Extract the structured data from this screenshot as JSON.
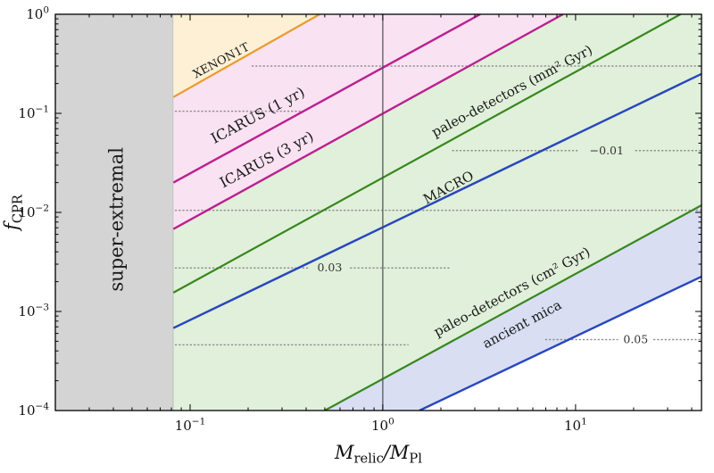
{
  "chart_data": {
    "type": "line",
    "title": "",
    "xlabel": "M_{relic}/M_{Pl}",
    "ylabel": "f_{CPR}",
    "xscale": "log",
    "yscale": "log",
    "xlim": [
      0.02,
      45
    ],
    "ylim": [
      0.0001,
      1
    ],
    "grid": false,
    "legend": "none",
    "x_ticks": [
      {
        "v": 0.1,
        "label": "10^{−1}"
      },
      {
        "v": 1,
        "label": "10^{0}"
      },
      {
        "v": 10,
        "label": "10^{1}"
      }
    ],
    "y_ticks": [
      {
        "v": 1,
        "label": "10^{0}"
      },
      {
        "v": 0.1,
        "label": "10^{−1}"
      },
      {
        "v": 0.01,
        "label": "10^{−2}"
      },
      {
        "v": 0.001,
        "label": "10^{−3}"
      },
      {
        "v": 0.0001,
        "label": "10^{−4}"
      }
    ],
    "regions": [
      {
        "name": "super-extremal",
        "fill": "#d4d4d4",
        "edge": "#a6a6a6",
        "poly": [
          [
            0.02,
            0.0001
          ],
          [
            0.082,
            0.0001
          ],
          [
            0.082,
            1
          ],
          [
            0.02,
            1
          ]
        ]
      },
      {
        "name": "paleo-detectors-green",
        "fill": "#e0f0da",
        "poly": [
          [
            0.082,
            0.0001
          ],
          [
            0.5,
            0.0001
          ],
          [
            45,
            0.0118
          ],
          [
            45,
            1
          ],
          [
            0.082,
            1
          ]
        ]
      },
      {
        "name": "ancient-mica-blue",
        "fill": "#d9def3",
        "poly": [
          [
            0.5,
            0.0001
          ],
          [
            1.55,
            0.0001
          ],
          [
            45,
            0.00225
          ],
          [
            45,
            0.0118
          ]
        ]
      },
      {
        "name": "icarus-pink",
        "fill": "#f9e2f1",
        "poly": [
          [
            0.082,
            0.0068
          ],
          [
            8.6,
            1
          ],
          [
            0.082,
            1
          ]
        ]
      },
      {
        "name": "xenon1t-orange",
        "fill": "#fdf0d4",
        "poly": [
          [
            0.082,
            0.146
          ],
          [
            0.47,
            1
          ],
          [
            0.082,
            1
          ]
        ]
      }
    ],
    "series": [
      {
        "name": "XENON1T",
        "color": "#e89b2e",
        "width": 2.2,
        "points": [
          [
            0.082,
            0.146
          ],
          [
            0.47,
            1
          ]
        ]
      },
      {
        "name": "ICARUS 1 yr",
        "color": "#bb2090",
        "width": 2.4,
        "points": [
          [
            0.082,
            0.02
          ],
          [
            3.2,
            1
          ]
        ]
      },
      {
        "name": "ICARUS 3 yr",
        "color": "#bb2090",
        "width": 2.4,
        "points": [
          [
            0.082,
            0.0068
          ],
          [
            8.6,
            1
          ]
        ]
      },
      {
        "name": "paleo-detectors mm2 Gyr",
        "color": "#38871d",
        "width": 2.2,
        "points": [
          [
            0.082,
            0.00155
          ],
          [
            35,
            1
          ]
        ]
      },
      {
        "name": "MACRO",
        "color": "#2846bf",
        "width": 2.4,
        "points": [
          [
            0.082,
            0.00068
          ],
          [
            45,
            0.25
          ]
        ]
      },
      {
        "name": "paleo-detectors cm2 Gyr",
        "color": "#38871d",
        "width": 2.2,
        "points": [
          [
            0.5,
            0.0001
          ],
          [
            45,
            0.0118
          ]
        ]
      },
      {
        "name": "ancient mica",
        "color": "#2846bf",
        "width": 2.4,
        "points": [
          [
            1.55,
            0.0001
          ],
          [
            45,
            0.00225
          ]
        ]
      },
      {
        "name": "relic-mass-guide",
        "color": "#4d4d4d",
        "width": 1.2,
        "points": [
          [
            1,
            0.0001
          ],
          [
            1,
            1
          ]
        ]
      }
    ],
    "contours": {
      "color": "#8f8f8f",
      "segments": [
        {
          "y": 0.3,
          "x": [
            0.21,
            45
          ]
        },
        {
          "y": 0.105,
          "x": [
            0.084,
            0.4
          ]
        },
        {
          "y": 0.042,
          "x": [
            2.3,
            10.5
          ]
        },
        {
          "y": 0.042,
          "x": [
            20.5,
            45
          ]
        },
        {
          "y": 0.0105,
          "x": [
            0.084,
            45
          ]
        },
        {
          "y": 0.00275,
          "x": [
            0.084,
            0.42
          ]
        },
        {
          "y": 0.00275,
          "x": [
            0.68,
            2.2
          ]
        },
        {
          "y": 0.00052,
          "x": [
            7,
            16.5
          ]
        },
        {
          "y": 0.00052,
          "x": [
            25.5,
            45
          ]
        },
        {
          "y": 0.00046,
          "x": [
            0.084,
            1.35
          ]
        }
      ]
    },
    "labels": [
      {
        "text": "super-extremal",
        "x": 0.042,
        "y": 0.0085,
        "rot": -90,
        "size": 21,
        "color": "#1a1a1a"
      },
      {
        "text": "XENON1T",
        "x": 0.145,
        "y": 0.34,
        "rot": -28,
        "size": 13,
        "color": "#1a1a1a"
      },
      {
        "text": "ICARUS (1 yr)",
        "x": 0.225,
        "y": 0.095,
        "rot": -28,
        "size": 16,
        "color": "#1a1a1a"
      },
      {
        "text": "ICARUS (3 yr)",
        "x": 0.25,
        "y": 0.034,
        "rot": -28,
        "size": 16,
        "color": "#1a1a1a"
      },
      {
        "text": "paleo-detectors (mm² Gyr)",
        "x": 4.7,
        "y": 0.165,
        "rot": -28,
        "size": 15,
        "color": "#1a1a1a"
      },
      {
        "text": "MACRO",
        "x": 2.2,
        "y": 0.0175,
        "rot": -28,
        "size": 15,
        "color": "#1a1a1a"
      },
      {
        "text": "paleo-detectors (cm² Gyr)",
        "x": 4.7,
        "y": 0.00155,
        "rot": -28,
        "size": 15,
        "color": "#1a1a1a"
      },
      {
        "text": "ancient mica",
        "x": 5.3,
        "y": 0.00073,
        "rot": -28,
        "size": 15,
        "color": "#1a1a1a"
      },
      {
        "text": "−0.01",
        "x": 14.5,
        "y": 0.042,
        "rot": 0,
        "size": 12.5,
        "color": "#333333"
      },
      {
        "text": "0.03",
        "x": 0.53,
        "y": 0.00275,
        "rot": 0,
        "size": 12.5,
        "color": "#333333"
      },
      {
        "text": "0.05",
        "x": 20.5,
        "y": 0.00052,
        "rot": 0,
        "size": 12.5,
        "color": "#333333"
      }
    ]
  }
}
